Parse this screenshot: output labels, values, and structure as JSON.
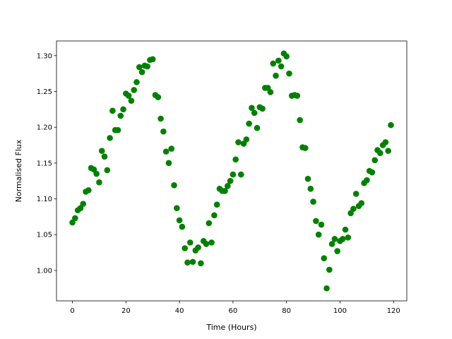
{
  "chart_data": {
    "type": "scatter",
    "x_label": "Time (Hours)",
    "y_label": "Normalised Flux",
    "color": "#008000",
    "x": [
      0,
      1,
      2,
      3,
      4,
      5,
      6,
      7,
      8,
      9,
      10,
      11,
      12,
      13,
      14,
      15,
      16,
      17,
      18,
      19,
      20,
      21,
      22,
      23,
      24,
      25,
      26,
      27,
      28,
      29,
      30,
      31,
      32,
      33,
      34,
      35,
      36,
      37,
      38,
      39,
      40,
      41,
      42,
      43,
      44,
      45,
      46,
      47,
      48,
      49,
      50,
      51,
      52,
      53,
      54,
      55,
      56,
      57,
      58,
      59,
      60,
      61,
      62,
      63,
      64,
      65,
      66,
      67,
      68,
      69,
      70,
      71,
      72,
      73,
      74,
      75,
      76,
      77,
      78,
      79,
      80,
      81,
      82,
      83,
      84,
      85,
      86,
      87,
      88,
      89,
      90,
      91,
      92,
      93,
      94,
      95,
      96,
      97,
      98,
      99,
      100,
      101,
      102,
      103,
      104,
      105,
      106,
      107,
      108,
      109,
      110,
      111,
      112,
      113,
      114,
      115,
      116,
      117,
      118,
      119
    ],
    "y": [
      1.067,
      1.073,
      1.084,
      1.087,
      1.093,
      1.11,
      1.112,
      1.143,
      1.141,
      1.135,
      1.123,
      1.167,
      1.159,
      1.14,
      1.185,
      1.223,
      1.196,
      1.196,
      1.216,
      1.225,
      1.247,
      1.244,
      1.237,
      1.252,
      1.263,
      1.284,
      1.277,
      1.286,
      1.285,
      1.294,
      1.295,
      1.245,
      1.242,
      1.212,
      1.194,
      1.166,
      1.15,
      1.17,
      1.119,
      1.087,
      1.07,
      1.061,
      1.031,
      1.011,
      1.039,
      1.012,
      1.028,
      1.032,
      1.01,
      1.041,
      1.037,
      1.066,
      1.039,
      1.077,
      1.092,
      1.114,
      1.111,
      1.111,
      1.118,
      1.125,
      1.134,
      1.155,
      1.179,
      1.134,
      1.177,
      1.183,
      1.205,
      1.227,
      1.22,
      1.199,
      1.228,
      1.226,
      1.255,
      1.255,
      1.249,
      1.289,
      1.272,
      1.293,
      1.285,
      1.303,
      1.299,
      1.275,
      1.244,
      1.245,
      1.244,
      1.21,
      1.172,
      1.171,
      1.128,
      1.114,
      1.096,
      1.069,
      1.05,
      1.064,
      1.017,
      0.975,
      1.001,
      1.037,
      1.044,
      1.027,
      1.041,
      1.044,
      1.057,
      1.046,
      1.08,
      1.086,
      1.107,
      1.09,
      1.094,
      1.122,
      1.126,
      1.139,
      1.137,
      1.154,
      1.168,
      1.164,
      1.175,
      1.179,
      1.167,
      1.203
    ],
    "xlim": [
      -5.95,
      124.95
    ],
    "xticks": [
      0,
      20,
      40,
      60,
      80,
      100,
      120
    ],
    "ylim": [
      0.9575,
      1.3205
    ],
    "yticks": [
      {
        "value": 1.0,
        "label": "1.00"
      },
      1.05,
      {
        "value": 1.1,
        "label": "1.10"
      },
      1.15,
      {
        "value": 1.2,
        "label": "1.20"
      },
      1.25,
      {
        "value": 1.3,
        "label": "1.30"
      }
    ]
  }
}
